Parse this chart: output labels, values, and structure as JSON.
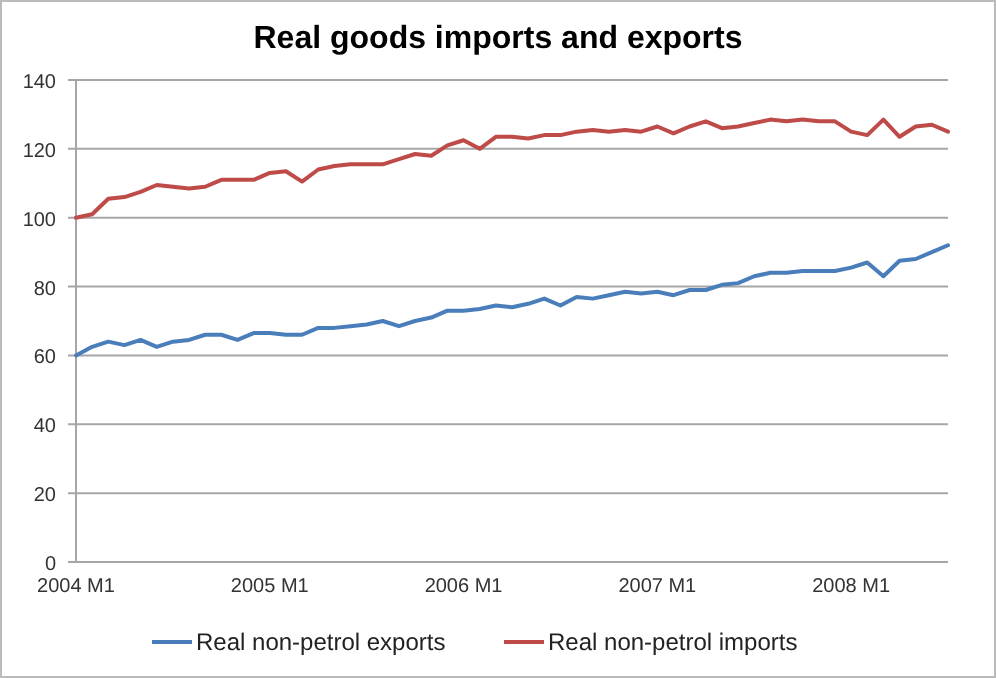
{
  "chart_data": {
    "type": "line",
    "title": "Real goods imports and exports",
    "categories": [
      "2004 M1",
      null,
      null,
      null,
      null,
      null,
      null,
      null,
      null,
      null,
      null,
      null,
      "2005 M1",
      null,
      null,
      null,
      null,
      null,
      null,
      null,
      null,
      null,
      null,
      null,
      "2006 M1",
      null,
      null,
      null,
      null,
      null,
      null,
      null,
      null,
      null,
      null,
      null,
      "2007 M1",
      null,
      null,
      null,
      null,
      null,
      null,
      null,
      null,
      null,
      null,
      null,
      "2008 M1",
      null,
      null,
      null,
      null,
      null,
      null
    ],
    "series": [
      {
        "name": "Real non-petrol exports",
        "color": "#4a7ebb",
        "values": [
          60,
          62.5,
          64,
          63,
          64.5,
          62.5,
          64,
          64.5,
          66,
          66,
          64.5,
          66.5,
          66.5,
          66,
          66,
          68,
          68,
          68.5,
          69,
          70,
          68.5,
          70,
          71,
          73,
          73,
          73.5,
          74.5,
          74,
          75,
          76.5,
          74.5,
          77,
          76.5,
          77.5,
          78.5,
          78,
          78.5,
          77.5,
          79,
          79,
          80.5,
          81,
          83,
          84,
          84,
          84.5,
          84.5,
          84.5,
          85.5,
          87,
          83,
          87.5,
          88,
          90,
          92
        ]
      },
      {
        "name": "Real non-petrol imports",
        "color": "#be4b48",
        "values": [
          100,
          101,
          105.5,
          106,
          107.5,
          109.5,
          109,
          108.5,
          109,
          111,
          111,
          111,
          113,
          113.5,
          110.5,
          114,
          115,
          115.5,
          115.5,
          115.5,
          117,
          118.5,
          118,
          121,
          122.5,
          120,
          123.5,
          123.5,
          123,
          124,
          124,
          125,
          125.5,
          125,
          125.5,
          125,
          126.5,
          124.5,
          126.5,
          128,
          126,
          126.5,
          127.5,
          128.5,
          128,
          128.5,
          128,
          128,
          125,
          124,
          128.5,
          123.5,
          126.5,
          127,
          125
        ]
      }
    ],
    "ylim": [
      0,
      140
    ],
    "yticks": [
      0,
      20,
      40,
      60,
      80,
      100,
      120,
      140
    ],
    "grid": "y",
    "legend": "bottom"
  }
}
